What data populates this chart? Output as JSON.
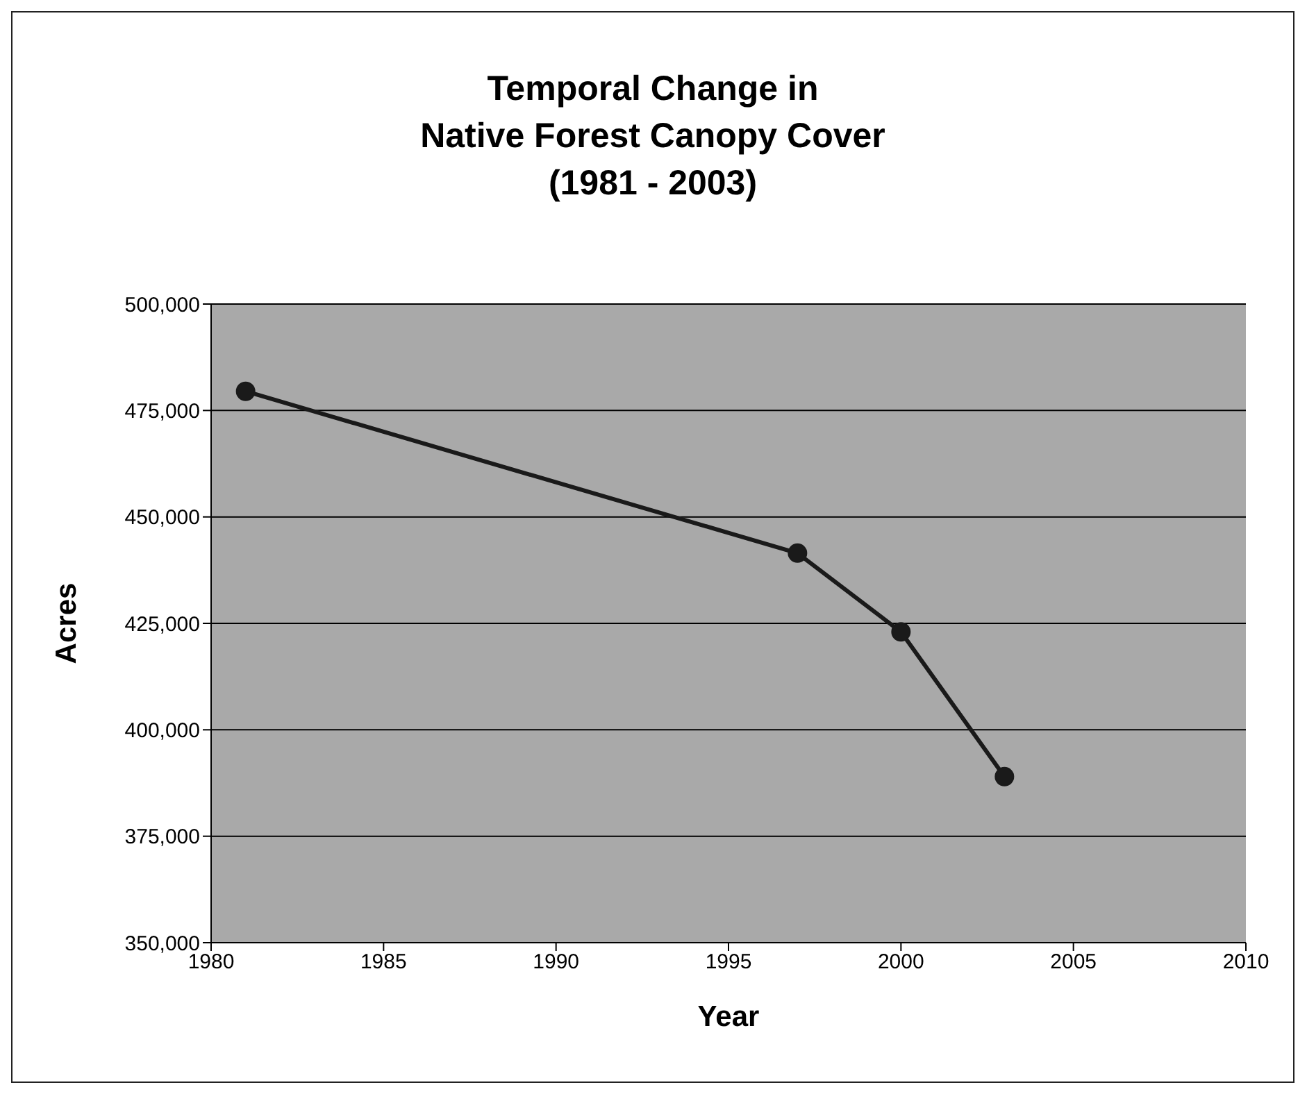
{
  "chart_data": {
    "type": "line",
    "title": "Temporal Change in\nNative Forest Canopy Cover\n(1981 - 2003)",
    "xlabel": "Year",
    "ylabel": "Acres",
    "x": [
      1981,
      1997,
      2000,
      2003
    ],
    "series": [
      {
        "color": "#1a1a1a",
        "values": [
          479500,
          441500,
          423000,
          389000
        ]
      }
    ],
    "xlim": [
      1980,
      2010
    ],
    "xticks": [
      1980,
      1985,
      1990,
      1995,
      2000,
      2005,
      2010
    ],
    "ylim": [
      350000,
      500000
    ],
    "yticks": [
      {
        "value": 350000,
        "label": "350,000"
      },
      {
        "value": 375000,
        "label": "375,000"
      },
      {
        "value": 400000,
        "label": "400,000"
      },
      {
        "value": 425000,
        "label": "425,000"
      },
      {
        "value": 450000,
        "label": "450,000"
      },
      {
        "value": 475000,
        "label": "475,000"
      },
      {
        "value": 500000,
        "label": "500,000"
      }
    ],
    "grid": "y",
    "marker": "circle",
    "line_style": "solid",
    "legend": false
  }
}
